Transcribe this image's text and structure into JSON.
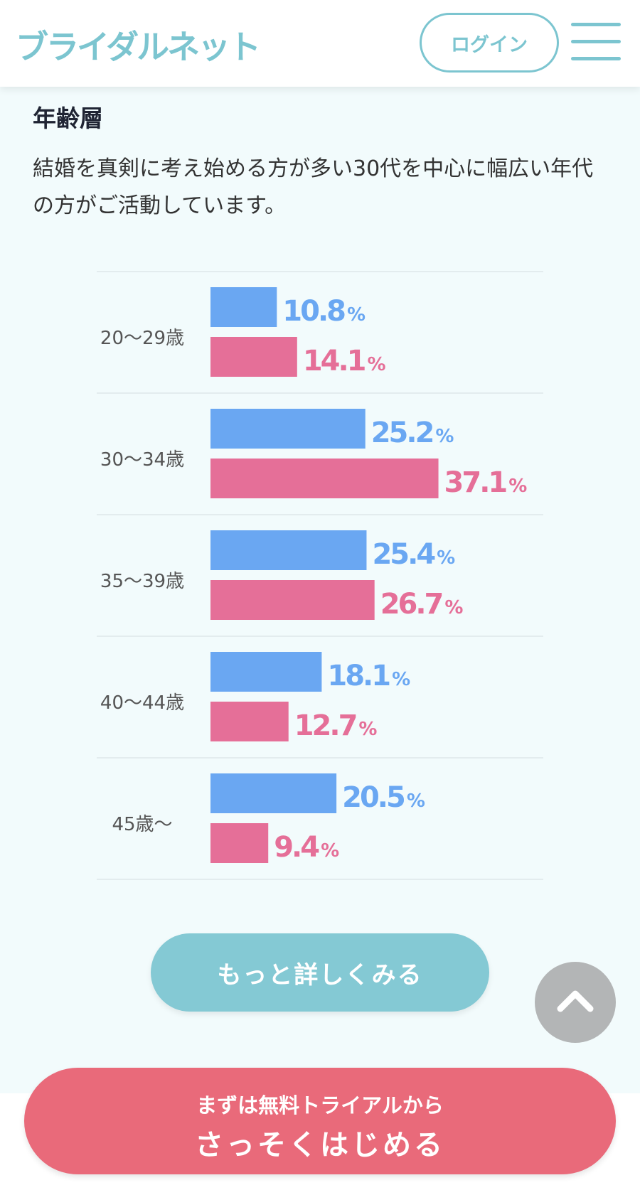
{
  "header": {
    "logo": "ブライダルネット",
    "login_label": "ログイン"
  },
  "section": {
    "title": "年齢層",
    "description": "結婚を真剣に考え始める方が多い30代を中心に幅広い年代の方がご活動しています。"
  },
  "chart_data": {
    "type": "bar",
    "orientation": "horizontal",
    "categories": [
      "20～29歳",
      "30～34歳",
      "35～39歳",
      "40～44歳",
      "45歳～"
    ],
    "series": [
      {
        "values": [
          10.8,
          25.2,
          25.4,
          18.1,
          20.5
        ],
        "color": "#6aa7f2"
      },
      {
        "values": [
          14.1,
          37.1,
          26.7,
          12.7,
          9.4
        ],
        "color": "#e56f98"
      }
    ],
    "unit": "%",
    "xlim": [
      0,
      40
    ]
  },
  "more_button": "もっと詳しくみる",
  "cta": {
    "sub": "まずは無料トライアルから",
    "main": "さっそくはじめる"
  },
  "colors": {
    "brand": "#7cc5d0",
    "male": "#6aa7f2",
    "female": "#e56f98",
    "cta": "#e96a7a"
  },
  "icons": {
    "menu": "hamburger-menu-icon",
    "scroll_top": "chevron-up-icon"
  }
}
